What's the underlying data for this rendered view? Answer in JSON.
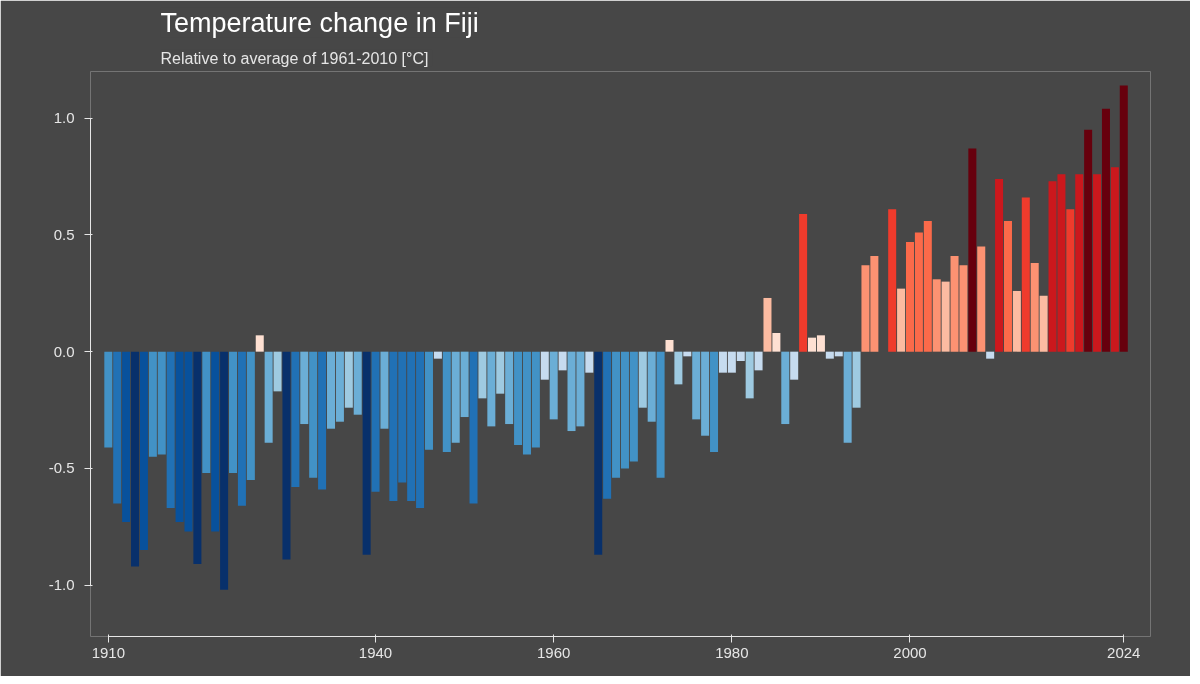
{
  "chart_data": {
    "type": "bar",
    "title": "Temperature change in Fiji",
    "subtitle": "Relative to average of 1961-2010  [°C]",
    "x": [
      1910,
      1911,
      1912,
      1913,
      1914,
      1915,
      1916,
      1917,
      1918,
      1919,
      1920,
      1921,
      1922,
      1923,
      1924,
      1925,
      1926,
      1927,
      1928,
      1929,
      1930,
      1931,
      1932,
      1933,
      1934,
      1935,
      1936,
      1937,
      1938,
      1939,
      1940,
      1941,
      1942,
      1943,
      1944,
      1945,
      1946,
      1947,
      1948,
      1949,
      1950,
      1951,
      1952,
      1953,
      1954,
      1955,
      1956,
      1957,
      1958,
      1959,
      1960,
      1961,
      1962,
      1963,
      1964,
      1965,
      1966,
      1967,
      1968,
      1969,
      1970,
      1971,
      1972,
      1973,
      1974,
      1975,
      1976,
      1977,
      1978,
      1979,
      1980,
      1981,
      1982,
      1983,
      1984,
      1985,
      1986,
      1987,
      1988,
      1989,
      1990,
      1991,
      1992,
      1993,
      1994,
      1995,
      1996,
      1997,
      1998,
      1999,
      2000,
      2001,
      2002,
      2003,
      2004,
      2005,
      2006,
      2007,
      2008,
      2009,
      2010,
      2011,
      2012,
      2013,
      2014,
      2015,
      2016,
      2017,
      2018,
      2019,
      2020,
      2021,
      2022,
      2023,
      2024
    ],
    "values": [
      -0.41,
      -0.65,
      -0.73,
      -0.92,
      -0.85,
      -0.45,
      -0.44,
      -0.67,
      -0.73,
      -0.77,
      -0.91,
      -0.52,
      -0.77,
      -1.02,
      -0.52,
      -0.66,
      -0.55,
      0.07,
      -0.39,
      -0.17,
      -0.89,
      -0.58,
      -0.31,
      -0.54,
      -0.59,
      -0.33,
      -0.3,
      -0.24,
      -0.27,
      -0.87,
      -0.6,
      -0.33,
      -0.64,
      -0.56,
      -0.64,
      -0.67,
      -0.42,
      -0.03,
      -0.43,
      -0.39,
      -0.28,
      -0.65,
      -0.2,
      -0.32,
      -0.18,
      -0.31,
      -0.4,
      -0.44,
      -0.41,
      -0.12,
      -0.29,
      -0.08,
      -0.34,
      -0.32,
      -0.09,
      -0.87,
      -0.63,
      -0.54,
      -0.5,
      -0.47,
      -0.24,
      -0.3,
      -0.54,
      0.05,
      -0.14,
      -0.02,
      -0.29,
      -0.36,
      -0.43,
      -0.09,
      -0.09,
      -0.04,
      -0.2,
      -0.08,
      0.23,
      0.08,
      -0.31,
      -0.12,
      0.59,
      0.06,
      0.07,
      -0.03,
      -0.02,
      -0.39,
      -0.24,
      0.37,
      0.41,
      0.0,
      0.61,
      0.27,
      0.47,
      0.51,
      0.56,
      0.31,
      0.3,
      0.41,
      0.37,
      0.87,
      0.45,
      -0.03,
      0.74,
      0.56,
      0.26,
      0.66,
      0.38,
      0.24,
      0.73,
      0.76,
      0.61,
      0.76,
      0.95,
      0.76,
      1.04,
      0.79,
      1.14
    ],
    "colors": [
      "#4292c6",
      "#2171b5",
      "#08519c",
      "#08306b",
      "#08519c",
      "#4292c6",
      "#4292c6",
      "#2171b5",
      "#08519c",
      "#08519c",
      "#08306b",
      "#4292c6",
      "#08519c",
      "#08306b",
      "#4292c6",
      "#2171b5",
      "#4292c6",
      "#fee0d2",
      "#6baed6",
      "#9ecae1",
      "#08306b",
      "#2171b5",
      "#6baed6",
      "#4292c6",
      "#2171b5",
      "#6baed6",
      "#6baed6",
      "#9ecae1",
      "#6baed6",
      "#08306b",
      "#2171b5",
      "#6baed6",
      "#2171b5",
      "#2171b5",
      "#2171b5",
      "#2171b5",
      "#4292c6",
      "#c6dbef",
      "#4292c6",
      "#6baed6",
      "#6baed6",
      "#2171b5",
      "#9ecae1",
      "#6baed6",
      "#9ecae1",
      "#6baed6",
      "#4292c6",
      "#4292c6",
      "#4292c6",
      "#c6dbef",
      "#6baed6",
      "#c6dbef",
      "#6baed6",
      "#6baed6",
      "#c6dbef",
      "#08306b",
      "#2171b5",
      "#4292c6",
      "#4292c6",
      "#4292c6",
      "#9ecae1",
      "#6baed6",
      "#4292c6",
      "#fee0d2",
      "#9ecae1",
      "#c6dbef",
      "#6baed6",
      "#6baed6",
      "#4292c6",
      "#c6dbef",
      "#c6dbef",
      "#c6dbef",
      "#9ecae1",
      "#c6dbef",
      "#fcbba1",
      "#fee0d2",
      "#6baed6",
      "#c6dbef",
      "#ef3b2c",
      "#fee0d2",
      "#fee0d2",
      "#c6dbef",
      "#c6dbef",
      "#6baed6",
      "#9ecae1",
      "#fc9272",
      "#fc9272",
      "#fee0d2",
      "#ef3b2c",
      "#fcbba1",
      "#fb6a4a",
      "#fb6a4a",
      "#fb6a4a",
      "#fc9272",
      "#fcbba1",
      "#fc9272",
      "#fc9272",
      "#67000d",
      "#fc9272",
      "#c6dbef",
      "#cb181d",
      "#fb6a4a",
      "#fcbba1",
      "#ef3b2c",
      "#fc9272",
      "#fcbba1",
      "#cb181d",
      "#cb181d",
      "#ef3b2c",
      "#cb181d",
      "#67000d",
      "#cb181d",
      "#67000d",
      "#cb181d",
      "#67000d"
    ],
    "xlim": [
      1908,
      2027
    ],
    "xticks": [
      1910,
      1940,
      1960,
      1980,
      2000,
      2024
    ],
    "ylim": [
      -1.22,
      1.2
    ],
    "yticks": [
      {
        "value": -1,
        "label": "-1.0"
      },
      {
        "value": -0.5,
        "label": "-0.5"
      },
      {
        "value": 0,
        "label": "0.0"
      },
      {
        "value": 0.5,
        "label": "0.5"
      },
      {
        "value": 1,
        "label": "1.0"
      }
    ],
    "grid": false
  }
}
